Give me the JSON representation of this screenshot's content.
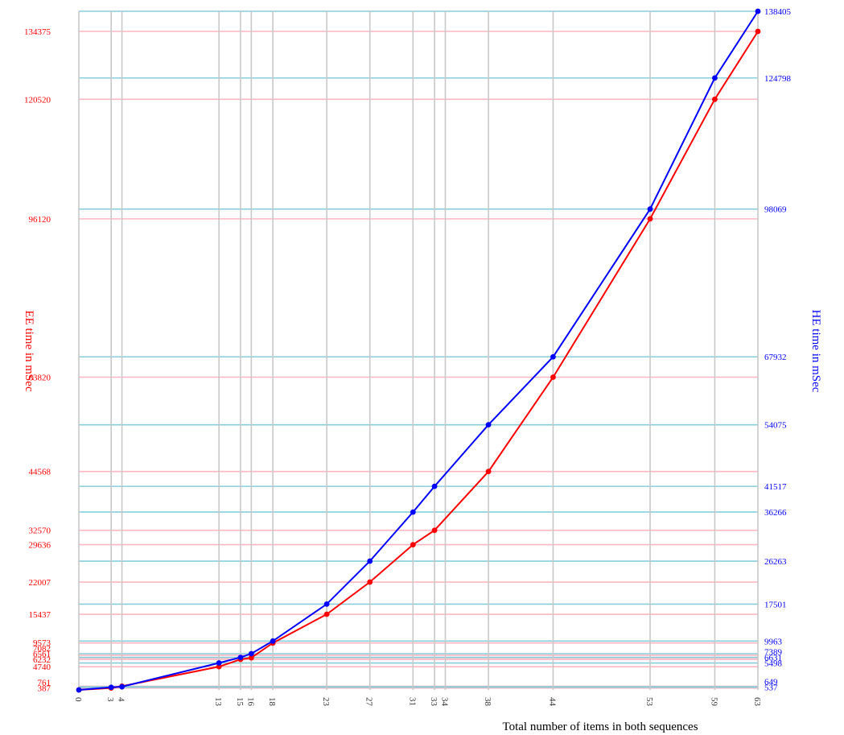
{
  "chart_data": {
    "type": "line",
    "title": "",
    "xlabel": "Total number of items in both sequences",
    "ylabel_left": "EE time in mSec",
    "ylabel_right": "HE time in mSec",
    "xlim": [
      0,
      63
    ],
    "ylim_left": [
      0,
      134375
    ],
    "ylim_right": [
      0,
      138405
    ],
    "grid": true,
    "colors": {
      "left_series": "#ff0000",
      "right_series": "#0000ff",
      "left_grid": "#ffb6c1",
      "right_grid": "#87cedb",
      "x_grid": "#c8c8c8"
    },
    "x_ticks": [
      "0",
      "3",
      "4",
      "13",
      "15",
      "16",
      "18",
      "23",
      "27",
      "31",
      "33",
      "34",
      "38",
      "44",
      "53",
      "59",
      "63"
    ],
    "left_ticks": [
      "134375",
      "120520",
      "96120",
      "63820",
      "44568",
      "32570",
      "29636",
      "22007",
      "15437",
      "9573",
      "7082",
      "6561",
      "6232",
      "4740",
      "761",
      "387"
    ],
    "right_ticks": [
      "138405",
      "124798",
      "98069",
      "67932",
      "54075",
      "41517",
      "36266",
      "26263",
      "17501",
      "9963",
      "7389",
      "6631",
      "5498",
      "649",
      "537"
    ],
    "series": [
      {
        "name": "EE time in mSec",
        "axis": "left",
        "x": [
          0,
          3,
          4,
          13,
          15,
          16,
          18,
          23,
          27,
          31,
          33,
          38,
          44,
          53,
          59,
          63
        ],
        "values": [
          0,
          387,
          761,
          4740,
          6232,
          6561,
          9573,
          15437,
          22007,
          29636,
          32570,
          44568,
          63820,
          96120,
          120520,
          134375
        ]
      },
      {
        "name": "HE time in mSec",
        "axis": "right",
        "x": [
          0,
          3,
          4,
          13,
          15,
          16,
          18,
          23,
          27,
          31,
          33,
          38,
          44,
          53,
          59,
          63
        ],
        "values": [
          0,
          537,
          649,
          5498,
          6631,
          7389,
          9963,
          17501,
          26263,
          36266,
          41517,
          54075,
          67932,
          98069,
          124798,
          138405
        ]
      }
    ]
  }
}
